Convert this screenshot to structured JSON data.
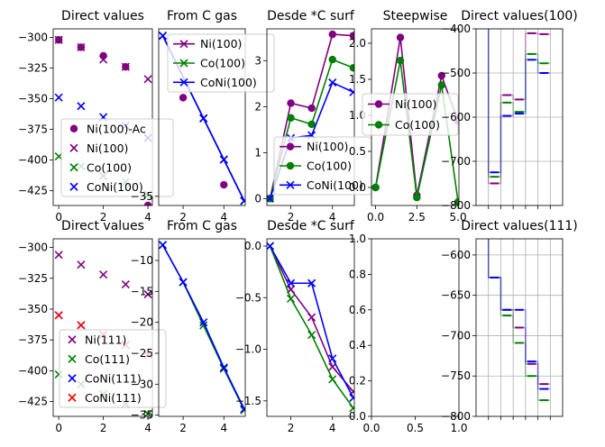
{
  "chart_data": [
    {
      "type": "scatter",
      "title": "Direct values",
      "xlim": [
        -0.25,
        4.2
      ],
      "ylim": [
        -437,
        -293
      ],
      "xticks": [
        0,
        2,
        4
      ],
      "xtick_labels": [
        "0",
        "2",
        "4"
      ],
      "yticks": [
        -300,
        -325,
        -350,
        -375,
        -400,
        -425
      ],
      "ytick_labels": [
        "−300",
        "−325",
        "−350",
        "−375",
        "−400",
        "−425"
      ],
      "series": [
        {
          "name": "Ni(100)-Ac",
          "marker": "circle",
          "color": "#800080",
          "x": [
            0,
            1,
            2,
            3,
            4
          ],
          "y": [
            -302,
            -308,
            -315,
            -324,
            -437
          ]
        },
        {
          "name": "Ni(100)",
          "marker": "x",
          "color": "#800080",
          "x": [
            0,
            1,
            2,
            3,
            4
          ],
          "y": [
            -302,
            -308,
            -318,
            -324,
            -334
          ]
        },
        {
          "name": "Co(100)",
          "marker": "x",
          "color": "#008000",
          "x": [
            0,
            1,
            2,
            3,
            4
          ],
          "y": [
            -397,
            -405,
            -413,
            -418,
            -428
          ]
        },
        {
          "name": "CoNi(100)",
          "marker": "x",
          "color": "#0000ff",
          "x": [
            0,
            1,
            2,
            3,
            4
          ],
          "y": [
            -349,
            -356,
            -365,
            -372,
            -382
          ]
        }
      ],
      "legend": "lower-right",
      "grid": false
    },
    {
      "type": "line",
      "title": "From C gas",
      "xlim": [
        0.8,
        5.05
      ],
      "ylim": [
        -37,
        1.5
      ],
      "xticks": [
        2,
        4
      ],
      "xtick_labels": [
        "2",
        "4"
      ],
      "yticks": [
        -35
      ],
      "ytick_labels": [
        "−35"
      ],
      "series": [
        {
          "name": "Ni(100)",
          "marker": "x",
          "color": "#800080",
          "x": [
            1,
            3,
            4,
            5
          ],
          "y": [
            0,
            -18,
            -27,
            -36
          ]
        },
        {
          "name": "Co(100)",
          "marker": "x",
          "color": "#008000",
          "x": [
            1,
            3,
            4,
            5
          ],
          "y": [
            0,
            -18,
            -27,
            -36
          ]
        },
        {
          "name": "CoNi(100)",
          "marker": "x",
          "color": "#0000ff",
          "x": [
            1,
            3,
            4,
            5
          ],
          "y": [
            0,
            -18,
            -27,
            -36
          ]
        },
        {
          "name": "",
          "marker": "circle",
          "color": "#800080",
          "x": [
            2,
            4
          ],
          "y": [
            -13.5,
            -32.5
          ]
        }
      ],
      "legend": "upper-right",
      "grid": false
    },
    {
      "type": "line",
      "title": "Desde *C surf",
      "xlim": [
        0.85,
        5.05
      ],
      "ylim": [
        -0.15,
        3.7
      ],
      "xticks": [
        2,
        4
      ],
      "xtick_labels": [
        "2",
        "4"
      ],
      "yticks": [
        0,
        1,
        2,
        3
      ],
      "ytick_labels": [
        "0",
        "1",
        "2",
        "3"
      ],
      "series": [
        {
          "name": "Ni(100)",
          "marker": "circle",
          "color": "#800080",
          "x": [
            1,
            2,
            3,
            4,
            5
          ],
          "y": [
            0,
            2.08,
            1.97,
            3.58,
            3.55
          ]
        },
        {
          "name": "Co(100)",
          "marker": "circle",
          "color": "#008000",
          "x": [
            1,
            2,
            3,
            4,
            5
          ],
          "y": [
            0,
            1.76,
            1.62,
            3.03,
            2.85
          ]
        },
        {
          "name": "CoNi(100)",
          "marker": "x",
          "color": "#0000ff",
          "x": [
            1,
            2,
            3,
            4,
            5
          ],
          "y": [
            0,
            1.32,
            1.38,
            2.53,
            2.32
          ]
        }
      ],
      "legend": "lower-right",
      "grid": false
    },
    {
      "type": "line",
      "title": "Steepwise",
      "xlim": [
        -0.25,
        5.05
      ],
      "ylim": [
        -0.25,
        2.2
      ],
      "xticks": [
        0,
        2.5,
        5
      ],
      "xtick_labels": [
        "0.0",
        "2.5",
        "5.0"
      ],
      "yticks": [
        0,
        0.5,
        1,
        1.5,
        2
      ],
      "ytick_labels": [
        "0.0",
        "0.5",
        "1.0",
        "1.5",
        "2.0"
      ],
      "series": [
        {
          "name": "Ni(100)",
          "marker": "circle",
          "color": "#800080",
          "x": [
            0,
            1.5,
            2.5,
            4,
            5
          ],
          "y": [
            0,
            2.08,
            -0.11,
            1.55,
            0.92
          ]
        },
        {
          "name": "Co(100)",
          "marker": "circle",
          "color": "#008000",
          "x": [
            0,
            1.5,
            2.5,
            4,
            5
          ],
          "y": [
            0,
            1.76,
            -0.14,
            1.42,
            -0.2
          ]
        }
      ],
      "legend": "upper-left",
      "grid": false
    },
    {
      "type": "step",
      "title": "Direct values(100)",
      "xlim": [
        0,
        7
      ],
      "ylim": [
        -800,
        -400
      ],
      "xticks": [
        1,
        2,
        3,
        4,
        5,
        6
      ],
      "xtick_labels": [],
      "yticks": [
        -400,
        -500,
        -600,
        -700,
        -800
      ],
      "ytick_labels": [
        "−400",
        "−500",
        "−600",
        "−700",
        "−800"
      ],
      "series": [
        {
          "name": "",
          "color": "#800080",
          "x": [
            1,
            2,
            3,
            4,
            5
          ],
          "y": [
            -750,
            -550,
            -560,
            -410,
            -412
          ]
        },
        {
          "name": "",
          "color": "#008000",
          "x": [
            1,
            2,
            3,
            4,
            5
          ],
          "y": [
            -735,
            -567,
            -588,
            -457,
            -478
          ]
        },
        {
          "name": "",
          "color": "#0000ff",
          "x": [
            1,
            2,
            3,
            4,
            5
          ],
          "y": [
            -725,
            -597,
            -592,
            -470,
            -500
          ]
        }
      ],
      "grid": true
    },
    {
      "type": "scatter",
      "title": "Direct values",
      "xlim": [
        -0.25,
        4.2
      ],
      "ylim": [
        -437,
        -293
      ],
      "xticks": [
        0,
        2,
        4
      ],
      "xtick_labels": [
        "0",
        "2",
        "4"
      ],
      "yticks": [
        -300,
        -325,
        -350,
        -375,
        -400,
        -425
      ],
      "ytick_labels": [
        "−300",
        "−325",
        "−350",
        "−375",
        "−400",
        "−425"
      ],
      "series": [
        {
          "name": "Ni(111)",
          "marker": "x",
          "color": "#800080",
          "x": [
            0,
            1,
            2,
            3,
            4
          ],
          "y": [
            -306,
            -314,
            -322,
            -330,
            -338
          ]
        },
        {
          "name": "Co(111)",
          "marker": "x",
          "color": "#008000",
          "x": [
            0,
            1,
            2,
            3,
            4
          ],
          "y": [
            -403,
            -411,
            -419,
            -427,
            -435
          ]
        },
        {
          "name": "CoNi(111)",
          "marker": "x",
          "color": "#0000ff",
          "x": [
            0,
            1,
            2,
            3,
            4
          ],
          "y": [
            -355,
            -363,
            -371,
            -379,
            -387
          ]
        },
        {
          "name": "CoNi(111)",
          "marker": "x",
          "color": "#ff0000",
          "x": [
            0,
            1,
            2,
            3,
            4
          ],
          "y": [
            -355,
            -363,
            -371,
            -379,
            -387
          ]
        }
      ],
      "legend": "lower-right",
      "grid": false
    },
    {
      "type": "line",
      "title": "From C gas",
      "xlim": [
        0.8,
        5.05
      ],
      "ylim": [
        -35.2,
        -6.5
      ],
      "xticks": [
        2,
        4
      ],
      "xtick_labels": [
        "2",
        "4"
      ],
      "yticks": [
        -10,
        -15,
        -20,
        -25,
        -30,
        -35
      ],
      "ytick_labels": [
        "−10",
        "−15",
        "−20",
        "−25",
        "−30",
        "−35"
      ],
      "series": [
        {
          "name": "",
          "marker": "x",
          "color": "#008000",
          "x": [
            1,
            2,
            3,
            4,
            5
          ],
          "y": [
            -7.5,
            -13.5,
            -20.5,
            -27.5,
            -34.2
          ]
        },
        {
          "name": "",
          "marker": "x",
          "color": "#0000ff",
          "x": [
            1,
            2,
            3,
            4,
            5
          ],
          "y": [
            -7.5,
            -13.5,
            -20,
            -27.3,
            -34
          ]
        }
      ],
      "grid": false
    },
    {
      "type": "line",
      "title": "Desde *C surf",
      "xlim": [
        0.85,
        5.05
      ],
      "ylim": [
        -1.65,
        0.07
      ],
      "xticks": [
        2,
        4
      ],
      "xtick_labels": [
        "2",
        "4"
      ],
      "yticks": [
        0,
        -0.5,
        -1.0,
        -1.5
      ],
      "ytick_labels": [
        "0.0",
        "−0.5",
        "−1.0",
        "−1.5"
      ],
      "series": [
        {
          "name": "",
          "marker": "x",
          "color": "#800080",
          "x": [
            1,
            2,
            3,
            4,
            5
          ],
          "y": [
            0,
            -0.42,
            -0.69,
            -1.17,
            -1.41
          ]
        },
        {
          "name": "",
          "marker": "x",
          "color": "#008000",
          "x": [
            1,
            2,
            3,
            4,
            5
          ],
          "y": [
            0,
            -0.51,
            -0.86,
            -1.29,
            -1.57
          ]
        },
        {
          "name": "",
          "marker": "x",
          "color": "#0000ff",
          "x": [
            1,
            2,
            3,
            4,
            5
          ],
          "y": [
            0,
            -0.36,
            -0.36,
            -1.09,
            -1.47
          ]
        }
      ],
      "grid": false
    },
    {
      "type": "empty",
      "title": "",
      "xlim": [
        0,
        1
      ],
      "ylim": [
        0,
        1
      ],
      "xticks": [
        0,
        0.5,
        1
      ],
      "xtick_labels": [
        "0.0",
        "0.5",
        "1.0"
      ],
      "yticks": [
        0,
        0.2,
        0.4,
        0.6,
        0.8,
        1
      ],
      "ytick_labels": [
        "0.0",
        "0.2",
        "0.4",
        "0.6",
        "0.8",
        "1.0"
      ],
      "series": [],
      "grid": false
    },
    {
      "type": "step",
      "title": "Direct values(111)",
      "xlim": [
        0,
        7
      ],
      "ylim": [
        -800,
        -580
      ],
      "xticks": [
        1,
        2,
        3,
        4,
        5,
        6
      ],
      "xtick_labels": [],
      "yticks": [
        -600,
        -650,
        -700,
        -750,
        -800
      ],
      "ytick_labels": [
        "−600",
        "−650",
        "−700",
        "−750",
        "−800"
      ],
      "series": [
        {
          "name": "",
          "color": "#800080",
          "x": [
            1,
            2,
            3,
            4,
            5
          ],
          "y": [
            -628,
            -668,
            -690,
            -735,
            -760
          ]
        },
        {
          "name": "",
          "color": "#008000",
          "x": [
            1,
            2,
            3,
            4,
            5
          ],
          "y": [
            -628,
            -675,
            -709,
            -750,
            -780
          ]
        },
        {
          "name": "",
          "color": "#0000ff",
          "x": [
            1,
            2,
            3,
            4,
            5
          ],
          "y": [
            -628,
            -668,
            -668,
            -732,
            -766
          ]
        }
      ],
      "grid": true
    }
  ]
}
